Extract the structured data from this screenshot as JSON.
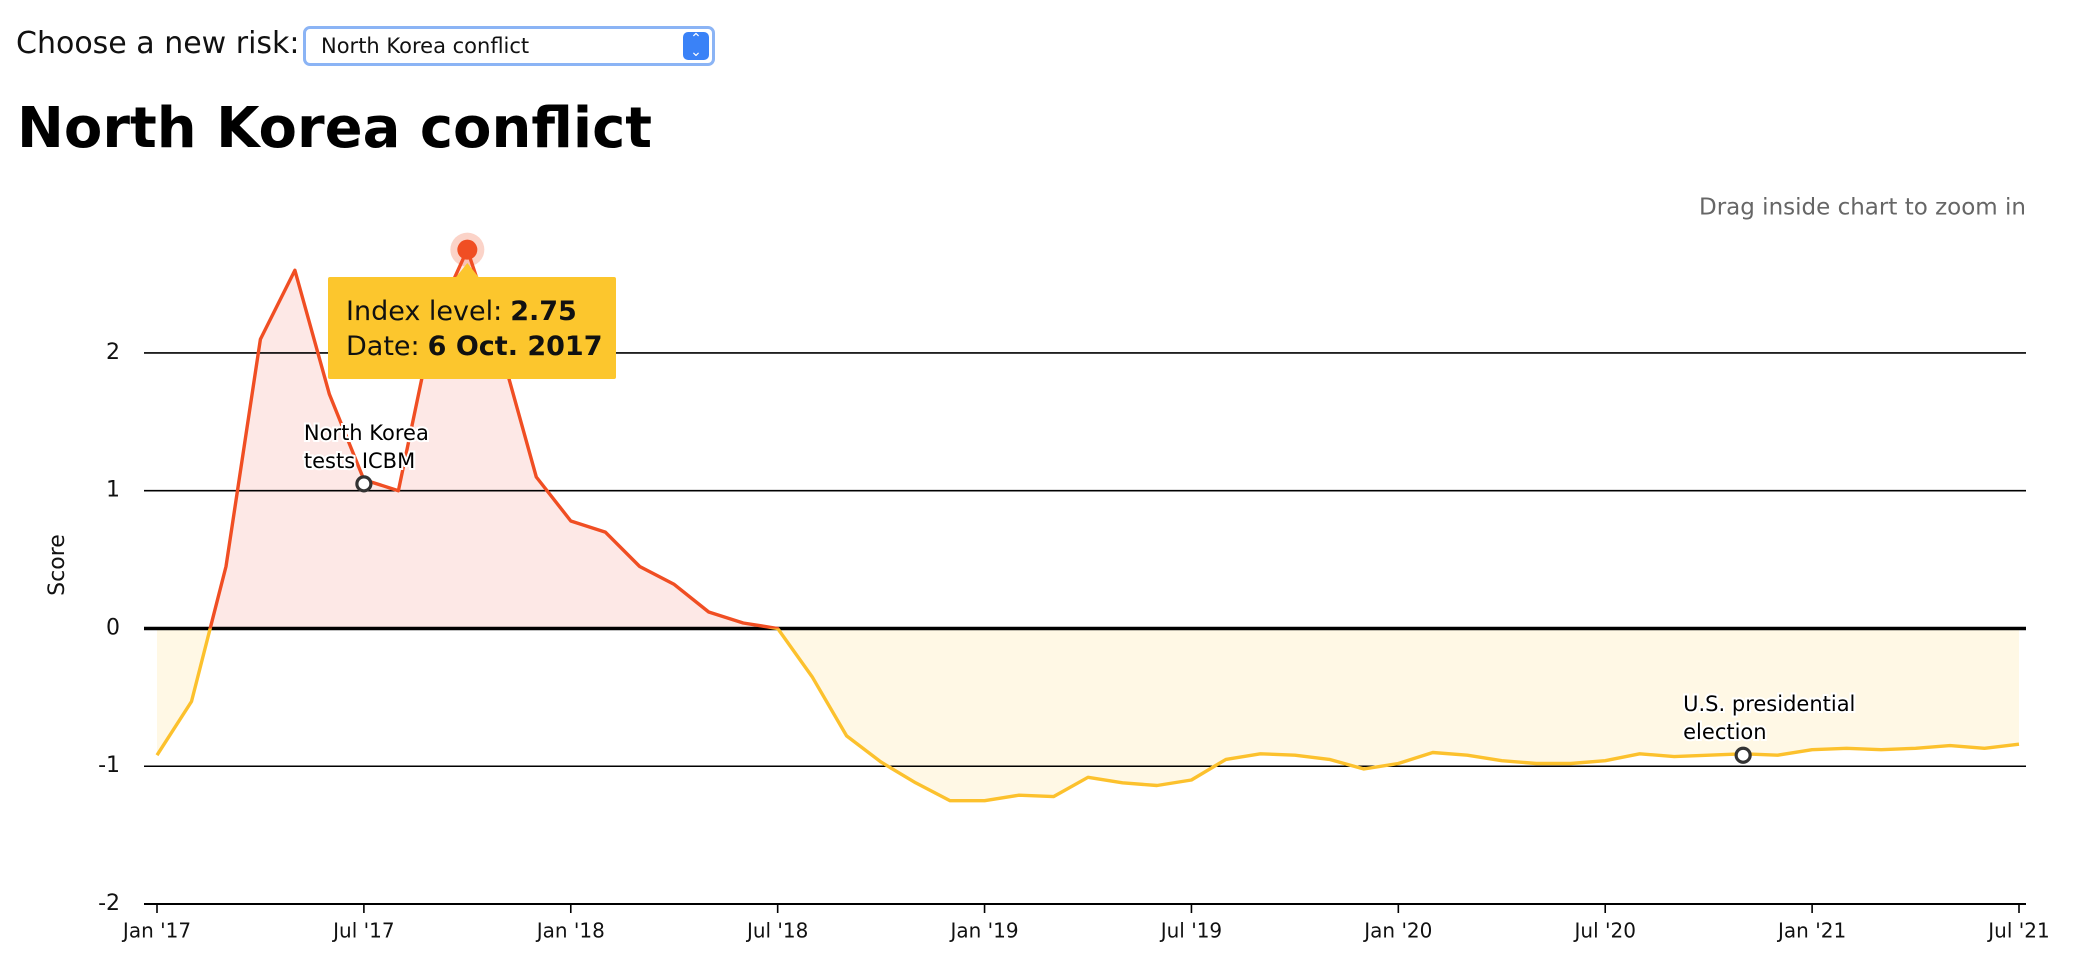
{
  "controls": {
    "label": "Choose a new risk:",
    "selected": "North Korea conflict"
  },
  "chart_data": {
    "type": "line",
    "title": "North Korea conflict",
    "hint": "Drag inside chart to zoom in",
    "ylabel": "Score",
    "x": [
      "2017-01",
      "2017-02",
      "2017-03",
      "2017-04",
      "2017-05",
      "2017-06",
      "2017-07",
      "2017-08",
      "2017-09",
      "2017-10",
      "2017-11",
      "2017-12",
      "2018-01",
      "2018-02",
      "2018-03",
      "2018-04",
      "2018-05",
      "2018-06",
      "2018-07",
      "2018-08",
      "2018-09",
      "2018-10",
      "2018-11",
      "2018-12",
      "2019-01",
      "2019-02",
      "2019-03",
      "2019-04",
      "2019-05",
      "2019-06",
      "2019-07",
      "2019-08",
      "2019-09",
      "2019-10",
      "2019-11",
      "2019-12",
      "2020-01",
      "2020-02",
      "2020-03",
      "2020-04",
      "2020-05",
      "2020-06",
      "2020-07",
      "2020-08",
      "2020-09",
      "2020-10",
      "2020-11",
      "2020-12",
      "2021-01",
      "2021-02",
      "2021-03",
      "2021-04",
      "2021-05",
      "2021-06",
      "2021-07"
    ],
    "series": [
      {
        "name": "Score",
        "color_above": "#f04e23",
        "color_below": "#fcc12d",
        "fill_above": "#fde8e6",
        "fill_below": "#fff8e5",
        "values": [
          -0.92,
          -0.53,
          0.45,
          2.1,
          2.6,
          1.7,
          1.08,
          1.0,
          2.2,
          2.75,
          2.0,
          1.1,
          0.78,
          0.7,
          0.45,
          0.32,
          0.12,
          0.04,
          0.0,
          -0.35,
          -0.78,
          -0.97,
          -1.12,
          -1.25,
          -1.25,
          -1.21,
          -1.22,
          -1.08,
          -1.12,
          -1.14,
          -1.1,
          -0.95,
          -0.91,
          -0.92,
          -0.95,
          -1.02,
          -0.98,
          -0.9,
          -0.92,
          -0.96,
          -0.98,
          -0.98,
          -0.96,
          -0.91,
          -0.93,
          -0.92,
          -0.91,
          -0.92,
          -0.88,
          -0.87,
          -0.88,
          -0.87,
          -0.85,
          -0.87,
          -0.84
        ]
      }
    ],
    "xlim": [
      "2017-01",
      "2021-07"
    ],
    "xticks": [
      {
        "value": "2017-01",
        "label": "Jan '17"
      },
      {
        "value": "2017-07",
        "label": "Jul '17"
      },
      {
        "value": "2018-01",
        "label": "Jan '18"
      },
      {
        "value": "2018-07",
        "label": "Jul '18"
      },
      {
        "value": "2019-01",
        "label": "Jan '19"
      },
      {
        "value": "2019-07",
        "label": "Jul '19"
      },
      {
        "value": "2020-01",
        "label": "Jan '20"
      },
      {
        "value": "2020-07",
        "label": "Jul '20"
      },
      {
        "value": "2021-01",
        "label": "Jan '21"
      },
      {
        "value": "2021-07",
        "label": "Jul '21"
      }
    ],
    "ylim": [
      -2,
      2.9
    ],
    "yticks": [
      -2,
      -1,
      0,
      1,
      2
    ],
    "grid": true,
    "annotations": [
      {
        "x": "2017-07",
        "y": 1.05,
        "label": [
          "North Korea",
          "tests ICBM"
        ]
      },
      {
        "x": "2020-11",
        "y": -0.92,
        "label": [
          "U.S. presidential",
          "election"
        ]
      }
    ],
    "tooltip": {
      "index_label": "Index level:",
      "index_value": "2.75",
      "date_label": "Date:",
      "date_value": "6 Oct. 2017",
      "point": {
        "x": "2017-10",
        "y": 2.75
      }
    }
  }
}
